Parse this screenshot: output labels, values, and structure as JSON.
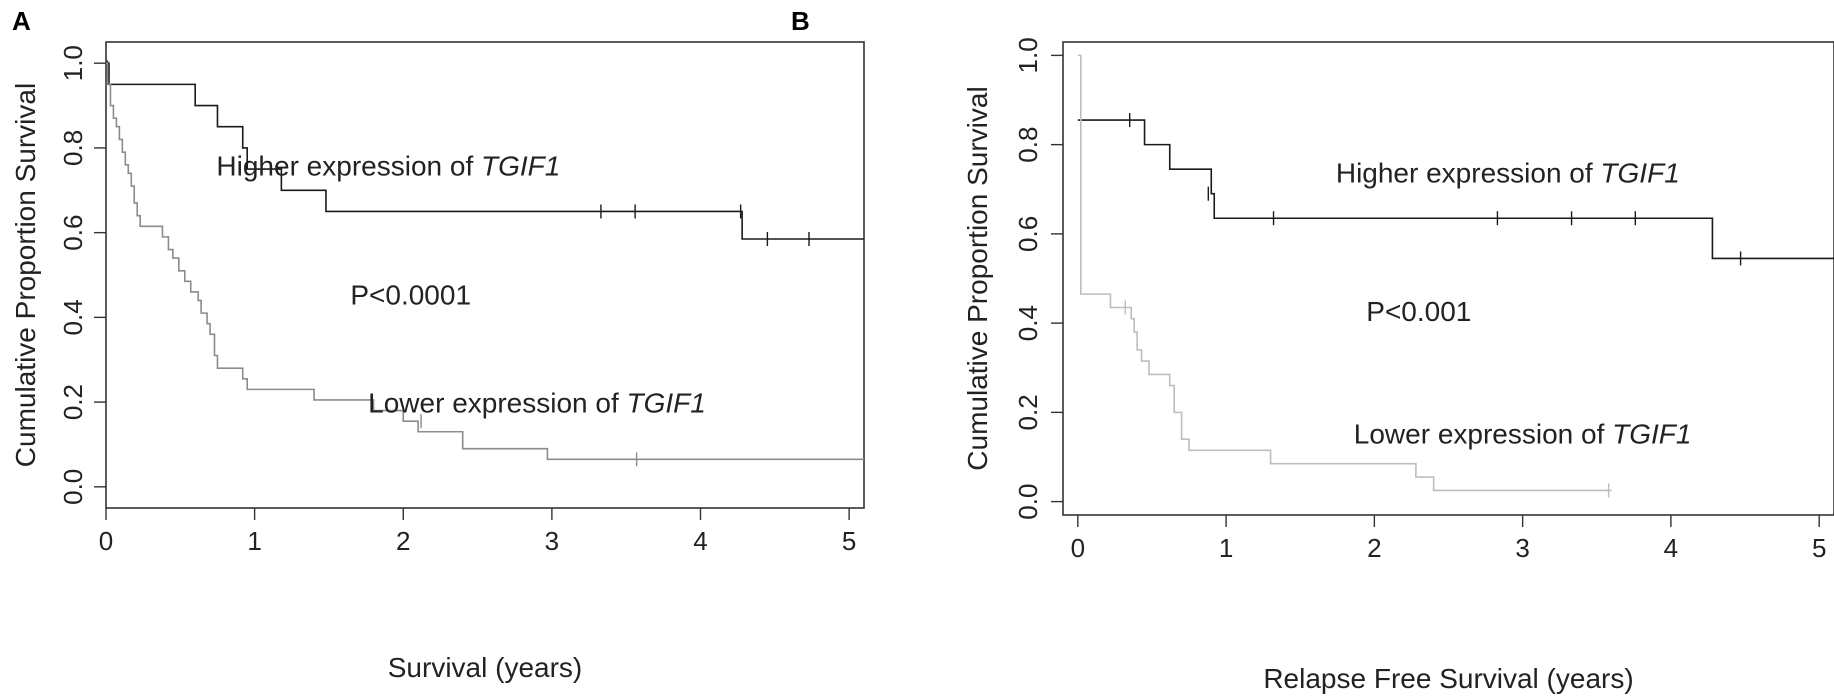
{
  "panels": [
    {
      "letter": "A",
      "chart_data": {
        "type": "line",
        "xlabel": "Survival (years)",
        "ylabel": "Cumulative Proportion Survival",
        "xlim": [
          0,
          5.1
        ],
        "ylim": [
          -0.05,
          1.05
        ],
        "xticks": [
          0,
          1,
          2,
          3,
          4,
          5
        ],
        "yticks": [
          0.0,
          0.2,
          0.4,
          0.6,
          0.8,
          1.0
        ],
        "ytick_labels": [
          "0.0",
          "0.2",
          "0.4",
          "0.6",
          "0.8",
          "1.0"
        ],
        "grid": false,
        "annotations": [
          {
            "prefix": "Higher expression of ",
            "emph": "TGIF1",
            "x": 1.9,
            "y": 0.735
          },
          {
            "prefix": "",
            "emph": "",
            "text": "P<0.0001",
            "x": 2.05,
            "y": 0.43
          },
          {
            "prefix": "Lower expression of ",
            "emph": "TGIF1",
            "x": 2.9,
            "y": 0.175
          }
        ],
        "series": [
          {
            "color": "#1a1a1a",
            "end_x": 5.1,
            "steps": [
              [
                0.0,
                1.0
              ],
              [
                0.02,
                0.95
              ],
              [
                0.6,
                0.9
              ],
              [
                0.75,
                0.85
              ],
              [
                0.92,
                0.8
              ],
              [
                0.95,
                0.75
              ],
              [
                1.18,
                0.7
              ],
              [
                1.48,
                0.65
              ],
              [
                4.28,
                0.585
              ]
            ],
            "censor": [
              [
                0.01,
                0.99
              ],
              [
                3.33,
                0.65
              ],
              [
                3.56,
                0.65
              ],
              [
                4.27,
                0.65
              ],
              [
                4.45,
                0.585
              ],
              [
                4.73,
                0.585
              ]
            ]
          },
          {
            "color": "#8c8c8c",
            "end_x": 5.1,
            "steps": [
              [
                0.0,
                1.0
              ],
              [
                0.01,
                0.95
              ],
              [
                0.03,
                0.9
              ],
              [
                0.05,
                0.87
              ],
              [
                0.07,
                0.85
              ],
              [
                0.09,
                0.82
              ],
              [
                0.11,
                0.79
              ],
              [
                0.13,
                0.76
              ],
              [
                0.15,
                0.74
              ],
              [
                0.17,
                0.71
              ],
              [
                0.19,
                0.67
              ],
              [
                0.21,
                0.64
              ],
              [
                0.23,
                0.615
              ],
              [
                0.38,
                0.59
              ],
              [
                0.42,
                0.56
              ],
              [
                0.45,
                0.54
              ],
              [
                0.49,
                0.51
              ],
              [
                0.53,
                0.485
              ],
              [
                0.57,
                0.46
              ],
              [
                0.62,
                0.44
              ],
              [
                0.64,
                0.41
              ],
              [
                0.68,
                0.385
              ],
              [
                0.7,
                0.36
              ],
              [
                0.73,
                0.31
              ],
              [
                0.75,
                0.28
              ],
              [
                0.92,
                0.255
              ],
              [
                0.95,
                0.23
              ],
              [
                1.4,
                0.205
              ],
              [
                1.8,
                0.18
              ],
              [
                2.0,
                0.155
              ],
              [
                2.1,
                0.13
              ],
              [
                2.4,
                0.09
              ],
              [
                2.97,
                0.065
              ]
            ],
            "censor": [
              [
                2.12,
                0.155
              ],
              [
                3.57,
                0.065
              ]
            ]
          }
        ]
      }
    },
    {
      "letter": "B",
      "chart_data": {
        "type": "line",
        "xlabel": "Relapse Free Survival (years)",
        "ylabel": "Cumulative Proportion Survival",
        "xlim": [
          -0.1,
          5.1
        ],
        "ylim": [
          -0.03,
          1.03
        ],
        "xticks": [
          0,
          1,
          2,
          3,
          4,
          5
        ],
        "yticks": [
          0.0,
          0.2,
          0.4,
          0.6,
          0.8,
          1.0
        ],
        "ytick_labels": [
          "0.0",
          "0.2",
          "0.4",
          "0.6",
          "0.8",
          "1.0"
        ],
        "grid": false,
        "annotations": [
          {
            "prefix": "Higher expression of ",
            "emph": "TGIF1",
            "x": 2.9,
            "y": 0.715
          },
          {
            "prefix": "",
            "emph": "",
            "text": "P<0.001",
            "x": 2.3,
            "y": 0.405
          },
          {
            "prefix": "Lower expression of ",
            "emph": "TGIF1",
            "x": 3.0,
            "y": 0.13
          }
        ],
        "series": [
          {
            "color": "#1a1a1a",
            "end_x": 5.1,
            "steps": [
              [
                0.0,
                0.855
              ],
              [
                0.45,
                0.8
              ],
              [
                0.62,
                0.745
              ],
              [
                0.9,
                0.69
              ],
              [
                0.92,
                0.635
              ],
              [
                4.28,
                0.545
              ]
            ],
            "censor": [
              [
                0.35,
                0.855
              ],
              [
                0.88,
                0.69
              ],
              [
                1.32,
                0.635
              ],
              [
                2.83,
                0.635
              ],
              [
                3.33,
                0.635
              ],
              [
                3.76,
                0.635
              ],
              [
                4.47,
                0.545
              ]
            ]
          },
          {
            "color": "#bdbdbd",
            "end_x": 3.6,
            "steps": [
              [
                0.0,
                1.0
              ],
              [
                0.02,
                0.465
              ],
              [
                0.22,
                0.435
              ],
              [
                0.36,
                0.41
              ],
              [
                0.38,
                0.38
              ],
              [
                0.4,
                0.34
              ],
              [
                0.43,
                0.315
              ],
              [
                0.48,
                0.285
              ],
              [
                0.62,
                0.26
              ],
              [
                0.65,
                0.2
              ],
              [
                0.7,
                0.14
              ],
              [
                0.75,
                0.115
              ],
              [
                1.3,
                0.085
              ],
              [
                2.28,
                0.055
              ],
              [
                2.4,
                0.025
              ]
            ],
            "censor": [
              [
                0.32,
                0.435
              ],
              [
                3.58,
                0.025
              ]
            ]
          }
        ]
      }
    }
  ]
}
